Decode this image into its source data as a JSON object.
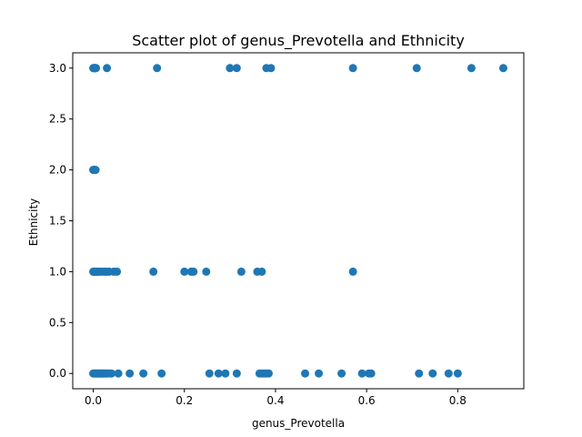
{
  "chart_data": {
    "type": "scatter",
    "title": "Scatter plot of genus_Prevotella and Ethnicity",
    "xlabel": "genus_Prevotella",
    "ylabel": "Ethnicity",
    "xlim": [
      -0.045,
      0.945
    ],
    "ylim": [
      -0.15,
      3.15
    ],
    "x_ticks": [
      0.0,
      0.2,
      0.4,
      0.6,
      0.8
    ],
    "x_tick_labels": [
      "0.0",
      "0.2",
      "0.4",
      "0.6",
      "0.8"
    ],
    "y_ticks": [
      0.0,
      0.5,
      1.0,
      1.5,
      2.0,
      2.5,
      3.0
    ],
    "y_tick_labels": [
      "0.0",
      "0.5",
      "1.0",
      "1.5",
      "2.0",
      "2.5",
      "3.0"
    ],
    "grid": false,
    "legend": "none",
    "marker_color": "#1f77b4",
    "series": [
      {
        "x": [
          0.0,
          0.002,
          0.004,
          0.006,
          0.008,
          0.01,
          0.012,
          0.014,
          0.016,
          0.018,
          0.02,
          0.022,
          0.025,
          0.028,
          0.03,
          0.035,
          0.04,
          0.055,
          0.08,
          0.11,
          0.15,
          0.255,
          0.275,
          0.29,
          0.315,
          0.365,
          0.37,
          0.375,
          0.38,
          0.385,
          0.465,
          0.495,
          0.545,
          0.59,
          0.605,
          0.61,
          0.715,
          0.745,
          0.78,
          0.8,
          0.0,
          0.002,
          0.004,
          0.006,
          0.008,
          0.01,
          0.015,
          0.02,
          0.025,
          0.03,
          0.035,
          0.045,
          0.052,
          0.132,
          0.2,
          0.215,
          0.22,
          0.248,
          0.325,
          0.36,
          0.37,
          0.57,
          0.0,
          0.001,
          0.002,
          0.003,
          0.004,
          0.005,
          0.0,
          0.001,
          0.002,
          0.003,
          0.004,
          0.005,
          0.006,
          0.03,
          0.14,
          0.3,
          0.315,
          0.38,
          0.39,
          0.57,
          0.71,
          0.83,
          0.9
        ],
        "y": [
          0,
          0,
          0,
          0,
          0,
          0,
          0,
          0,
          0,
          0,
          0,
          0,
          0,
          0,
          0,
          0,
          0,
          0,
          0,
          0,
          0,
          0,
          0,
          0,
          0,
          0,
          0,
          0,
          0,
          0,
          0,
          0,
          0,
          0,
          0,
          0,
          0,
          0,
          0,
          0,
          1,
          1,
          1,
          1,
          1,
          1,
          1,
          1,
          1,
          1,
          1,
          1,
          1,
          1,
          1,
          1,
          1,
          1,
          1,
          1,
          1,
          1,
          2,
          2,
          2,
          2,
          2,
          2,
          3,
          3,
          3,
          3,
          3,
          3,
          3,
          3,
          3,
          3,
          3,
          3,
          3,
          3,
          3,
          3,
          3
        ]
      }
    ]
  }
}
